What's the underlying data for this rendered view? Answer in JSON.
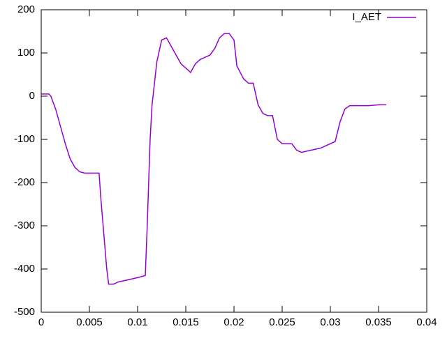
{
  "chart_data": {
    "type": "line",
    "x": [
      0,
      0.0008,
      0.001,
      0.0015,
      0.002,
      0.0025,
      0.003,
      0.0035,
      0.004,
      0.0045,
      0.005,
      0.0055,
      0.006,
      0.0062,
      0.0065,
      0.0068,
      0.007,
      0.0075,
      0.008,
      0.009,
      0.01,
      0.0108,
      0.011,
      0.0113,
      0.0115,
      0.012,
      0.0125,
      0.013,
      0.0135,
      0.014,
      0.0145,
      0.015,
      0.0155,
      0.016,
      0.0165,
      0.017,
      0.0175,
      0.018,
      0.0185,
      0.019,
      0.0195,
      0.02,
      0.0203,
      0.021,
      0.0215,
      0.022,
      0.0225,
      0.023,
      0.0235,
      0.024,
      0.0245,
      0.025,
      0.026,
      0.0265,
      0.027,
      0.028,
      0.029,
      0.03,
      0.0305,
      0.031,
      0.0315,
      0.032,
      0.033,
      0.034,
      0.035,
      0.0358
    ],
    "series": [
      {
        "name": "I_AET",
        "color": "#9400d3",
        "values": [
          5,
          5,
          0,
          -30,
          -70,
          -110,
          -145,
          -165,
          -175,
          -178,
          -178,
          -178,
          -178,
          -240,
          -320,
          -400,
          -435,
          -435,
          -430,
          -425,
          -420,
          -415,
          -300,
          -100,
          -20,
          80,
          130,
          135,
          115,
          95,
          75,
          65,
          55,
          75,
          85,
          90,
          95,
          110,
          135,
          145,
          145,
          130,
          70,
          40,
          30,
          30,
          -20,
          -40,
          -45,
          -45,
          -100,
          -110,
          -110,
          -125,
          -130,
          -125,
          -120,
          -110,
          -105,
          -60,
          -30,
          -22,
          -22,
          -22,
          -20,
          -20
        ]
      }
    ],
    "xlim": [
      0,
      0.04
    ],
    "xticks": [
      0,
      0.005,
      0.01,
      0.015,
      0.02,
      0.025,
      0.03,
      0.035,
      0.04
    ],
    "ylim": [
      -500,
      200
    ],
    "yticks": [
      -500,
      -400,
      -300,
      -200,
      -100,
      0,
      100,
      200
    ],
    "legend": "top-right",
    "grid": false
  }
}
